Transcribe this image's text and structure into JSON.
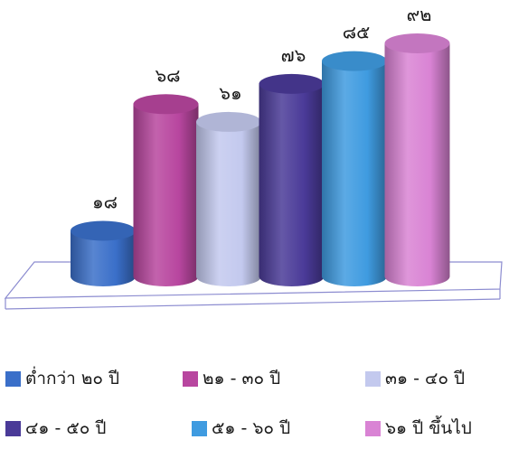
{
  "chart_data": {
    "type": "bar",
    "title": "",
    "xlabel": "",
    "ylabel": "",
    "categories": [
      "ต่ำกว่า ๒๐ ปี",
      "๒๑ - ๓๐ ปี",
      "๓๑ - ๔๐ ปี",
      "๔๑ - ๕๐ ปี",
      "๕๑ - ๖๐ ปี",
      "๖๑ ปี ขึ้นไป"
    ],
    "values": [
      18,
      68,
      61,
      76,
      85,
      92
    ],
    "data_labels": [
      "๑๘",
      "๖๘",
      "๖๑",
      "๗๖",
      "๘๕",
      "๙๒"
    ],
    "colors": [
      "#3a6fc9",
      "#b8469f",
      "#c3c9ee",
      "#4a3a98",
      "#3f9be0",
      "#d983d4"
    ],
    "ylim": [
      0,
      92
    ],
    "grid": false,
    "legend_position": "bottom",
    "style": "3d-cylinder"
  }
}
